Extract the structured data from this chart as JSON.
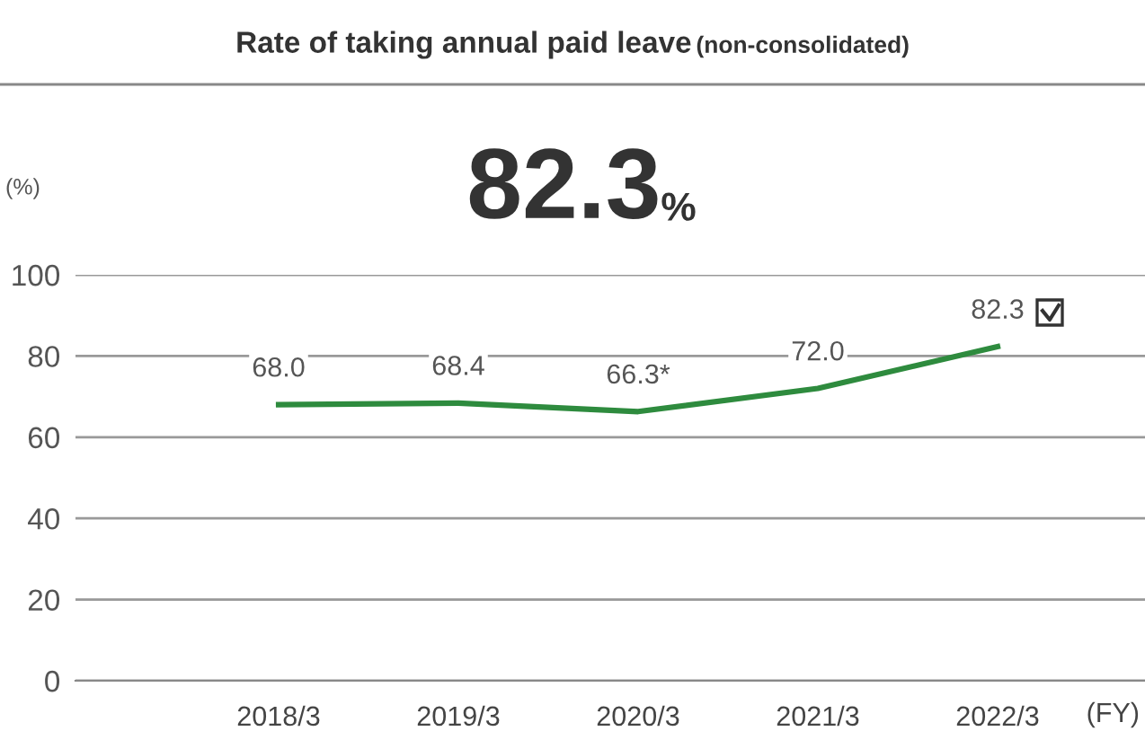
{
  "chart_data": {
    "type": "line",
    "title": "Rate of taking annual paid leave",
    "subtitle": "(non-consolidated)",
    "annotations": [
      "82.3%"
    ],
    "xlabel": "(FY)",
    "ylabel": "(%)",
    "categories": [
      "2018/3",
      "2019/3",
      "2020/3",
      "2021/3",
      "2022/3"
    ],
    "series": [
      {
        "color": "#2e8b3e",
        "values": [
          68.0,
          68.4,
          66.3,
          72.0,
          82.3
        ],
        "value_labels": [
          "68.0",
          "68.4",
          "66.3*",
          "72.0",
          "82.3"
        ]
      }
    ],
    "ylim": [
      0,
      100
    ],
    "yticks": [
      0,
      20,
      40,
      60,
      80,
      100
    ],
    "grid": "y",
    "legend": false,
    "marker": "none",
    "line_style": "solid"
  }
}
